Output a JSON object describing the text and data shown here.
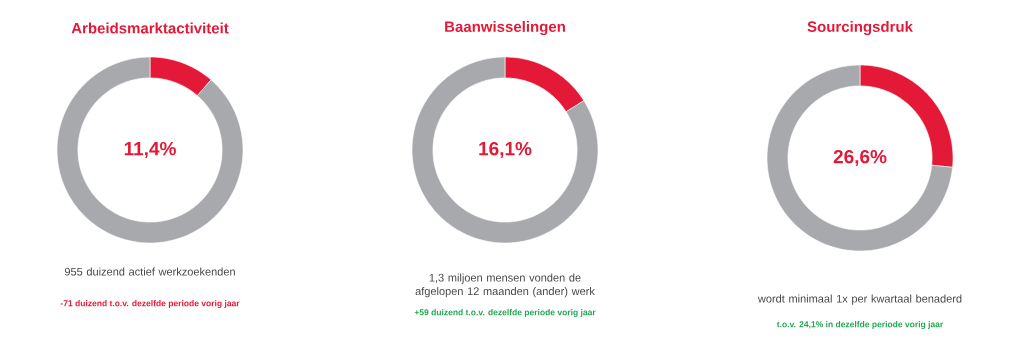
{
  "chart_data": [
    {
      "type": "donut",
      "title": "Arbeidsmarktactiviteit",
      "categories": [
        null,
        null
      ],
      "values": [
        11.4,
        88.6
      ],
      "colors": [
        "#e31937",
        "#a7a9ac"
      ],
      "annotations": [
        "11,4%",
        "955 duizend actief werkzoekenden",
        "-71 duizend t.o.v. dezelfde periode vorig jaar"
      ]
    },
    {
      "type": "donut",
      "title": "Baanwisselingen",
      "categories": [
        null,
        null
      ],
      "values": [
        16.1,
        83.9
      ],
      "colors": [
        "#e31937",
        "#a7a9ac"
      ],
      "annotations": [
        "16,1%",
        "1,3 miljoen mensen vonden de afgelopen 12 maanden (ander) werk",
        "+59 duizend t.o.v. dezelfde periode vorig jaar"
      ]
    },
    {
      "type": "donut",
      "title": "Sourcingsdruk",
      "categories": [
        null,
        null
      ],
      "values": [
        26.6,
        73.4
      ],
      "colors": [
        "#e31937",
        "#a7a9ac"
      ],
      "annotations": [
        "26,6%",
        "wordt minimaal 1x per kwartaal benaderd",
        "t.o.v. 24,1% in dezelfde periode vorig jaar"
      ]
    }
  ]
}
